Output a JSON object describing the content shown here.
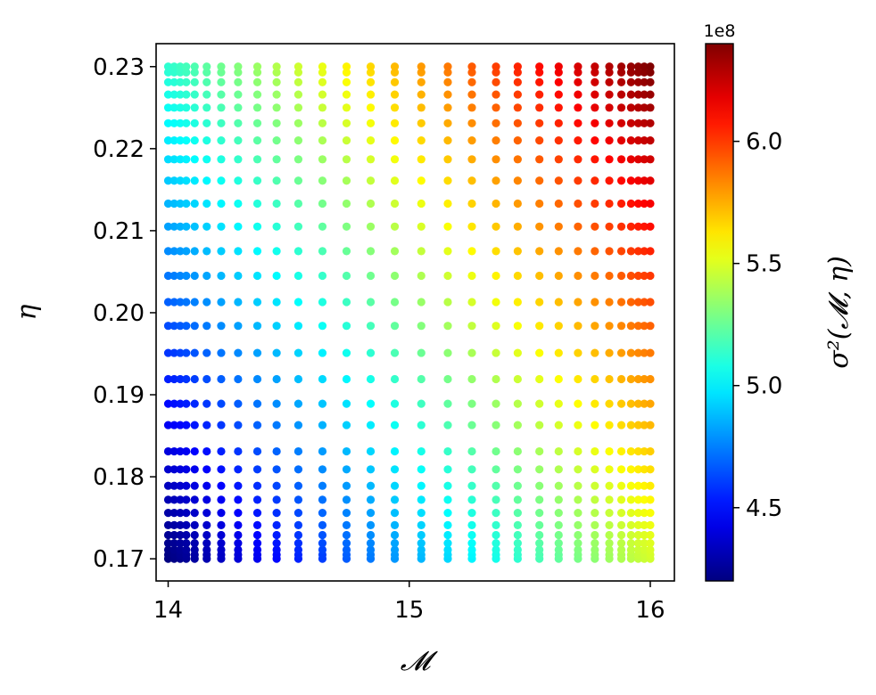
{
  "chart_data": {
    "type": "scatter",
    "title": "",
    "xlabel": "𝓜",
    "ylabel": "η",
    "xlim": [
      13.95,
      16.1
    ],
    "ylim": [
      0.1673,
      0.2328
    ],
    "x_ticks": [
      14,
      15,
      16
    ],
    "x_tick_labels": [
      "14",
      "15",
      "16"
    ],
    "y_ticks": [
      0.17,
      0.18,
      0.19,
      0.2,
      0.21,
      0.22,
      0.23
    ],
    "y_tick_labels": [
      "0.17",
      "0.18",
      "0.19",
      "0.20",
      "0.21",
      "0.22",
      "0.23"
    ],
    "grid": false,
    "x_values": [
      14.0,
      14.025,
      14.05,
      14.075,
      14.11,
      14.16,
      14.22,
      14.29,
      14.37,
      14.45,
      14.54,
      14.64,
      14.74,
      14.84,
      14.94,
      15.05,
      15.16,
      15.26,
      15.36,
      15.45,
      15.54,
      15.62,
      15.7,
      15.77,
      15.83,
      15.88,
      15.92,
      15.95,
      15.975,
      16.0
    ],
    "y_values": [
      0.17,
      0.1705,
      0.1711,
      0.1719,
      0.1729,
      0.1741,
      0.1756,
      0.1772,
      0.1789,
      0.1809,
      0.1831,
      0.1863,
      0.1889,
      0.1919,
      0.1951,
      0.1984,
      0.2013,
      0.2045,
      0.2075,
      0.2105,
      0.2133,
      0.2161,
      0.2187,
      0.221,
      0.2231,
      0.225,
      0.2266,
      0.2281,
      0.2293,
      0.23
    ],
    "color_variable": "σ²(𝓜, η)",
    "color_model": "sigma2 ≈ 4.2e8 + 2.2e8 * ((M - 14)/2 * 0.58 + (eta - 0.17)/0.06 * 0.42)",
    "colormap": "jet",
    "clim": [
      4.2,
      6.4
    ],
    "colorbar": {
      "label": "σ²(𝓜, η)",
      "offset_text": "1e8",
      "ticks": [
        4.5,
        5.0,
        5.5,
        6.0
      ],
      "tick_labels": [
        "4.5",
        "5.0",
        "5.5",
        "6.0"
      ]
    }
  }
}
